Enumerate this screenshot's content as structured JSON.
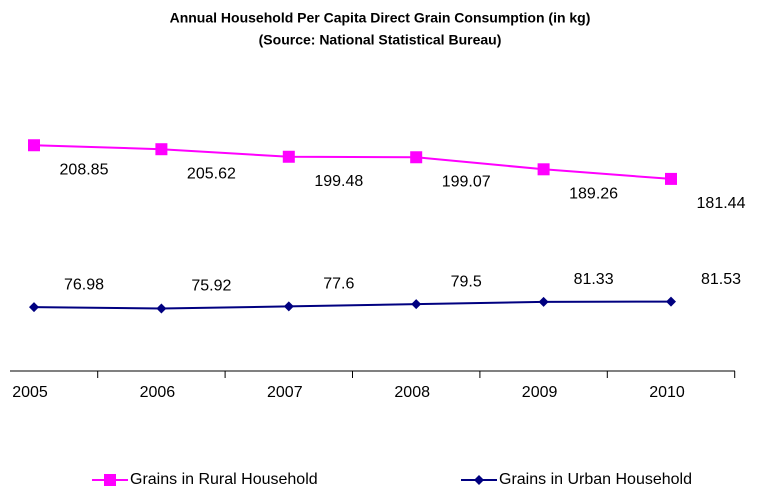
{
  "chart_data": {
    "type": "line",
    "title": "Annual Household Per Capita Direct Grain Consumption (in kg)",
    "subtitle": "(Source: National Statistical Bureau)",
    "categories": [
      "2005",
      "2006",
      "2007",
      "2008",
      "2009",
      "2010"
    ],
    "series": [
      {
        "name": "Grains in Rural Household",
        "color": "#ff00ff",
        "marker": "square",
        "values": [
          208.85,
          205.62,
          199.48,
          199.07,
          189.26,
          181.44
        ]
      },
      {
        "name": "Grains in Urban Household",
        "color": "#000080",
        "marker": "diamond",
        "values": [
          76.98,
          75.92,
          77.6,
          79.5,
          81.33,
          81.53
        ]
      }
    ],
    "ylim": [
      25,
      240
    ],
    "legend": "bottom"
  }
}
